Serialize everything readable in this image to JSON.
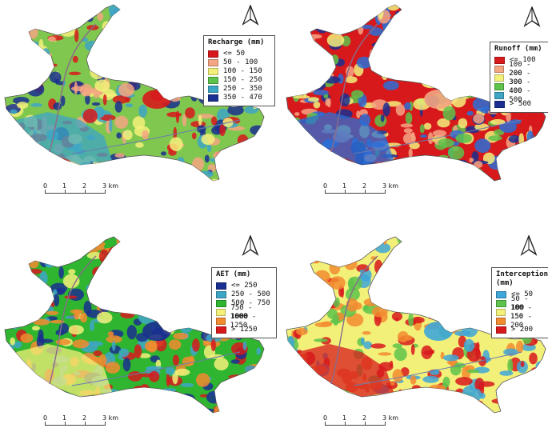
{
  "panels": [
    {
      "id": "recharge",
      "legend": {
        "title": "Recharge (mm)",
        "items": [
          {
            "label": "<= 50",
            "color": "#d7191c"
          },
          {
            "label": "50 - 100",
            "color": "#f4a582"
          },
          {
            "label": "100 - 150",
            "color": "#f3f07a"
          },
          {
            "label": "150 - 250",
            "color": "#5ec34a"
          },
          {
            "label": "250 - 350",
            "color": "#3ea6c5"
          },
          {
            "label": "350 - 470",
            "color": "#1a2f8f"
          }
        ]
      },
      "map_fill": "#7fc74e",
      "patch_colors": [
        "#3ea6c5",
        "#f3f07a",
        "#f4a582",
        "#d7191c",
        "#1a2f8f"
      ]
    },
    {
      "id": "runoff",
      "legend": {
        "title": "Runoff (mm)",
        "items": [
          {
            "label": "<= 100",
            "color": "#d7191c"
          },
          {
            "label": "100 - 200",
            "color": "#f4a582"
          },
          {
            "label": "200 - 300",
            "color": "#f3f07a"
          },
          {
            "label": "300 - 400",
            "color": "#5ec34a"
          },
          {
            "label": "400 - 500",
            "color": "#3ea6c5"
          },
          {
            "label": "> 500",
            "color": "#1a2f8f"
          }
        ]
      },
      "map_fill": "#d7191c",
      "patch_colors": [
        "#2b6fd6",
        "#1a2f8f",
        "#5ec34a",
        "#f4a582",
        "#f3f07a"
      ]
    },
    {
      "id": "aet",
      "legend": {
        "title": "AET (mm)",
        "items": [
          {
            "label": "<= 250",
            "color": "#1a2f8f"
          },
          {
            "label": "250 - 500",
            "color": "#3ea6c5"
          },
          {
            "label": "500 - 750",
            "color": "#2fb52f"
          },
          {
            "label": "750 - 1000",
            "color": "#f3f07a"
          },
          {
            "label": "1000 - 1250",
            "color": "#f28b30"
          },
          {
            "label": "> 1250",
            "color": "#d7191c"
          }
        ]
      },
      "map_fill": "#2fb52f",
      "patch_colors": [
        "#f3f07a",
        "#1a2f8f",
        "#3ea6c5",
        "#f28b30",
        "#d7191c"
      ]
    },
    {
      "id": "interception",
      "legend": {
        "title": "Interception (mm)",
        "items": [
          {
            "label": "<= 50",
            "color": "#3ea6d8"
          },
          {
            "label": "50 - 100",
            "color": "#5ec34a"
          },
          {
            "label": "100 - 150",
            "color": "#f3f07a"
          },
          {
            "label": "150 - 200",
            "color": "#f28b30"
          },
          {
            "label": "> 200",
            "color": "#d7191c"
          }
        ]
      },
      "map_fill": "#f3f07a",
      "patch_colors": [
        "#d7191c",
        "#3ea6d8",
        "#5ec34a",
        "#f28b30"
      ]
    }
  ],
  "scalebar": {
    "ticks": [
      "0",
      "1",
      "2",
      "3 km"
    ]
  },
  "north_arrow_icon": "north-arrow-icon"
}
